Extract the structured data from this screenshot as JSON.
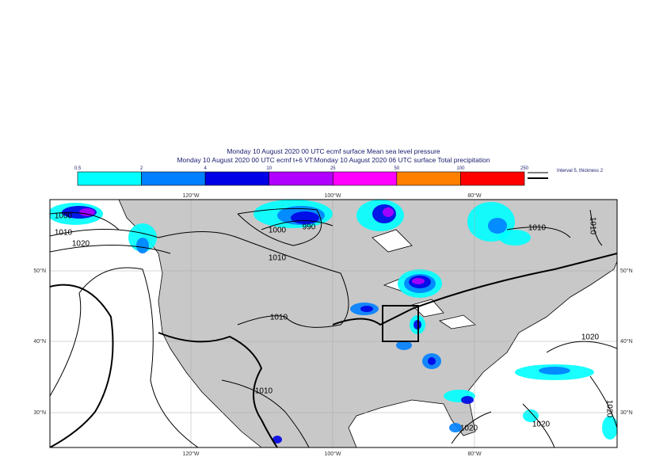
{
  "header": {
    "title_line1": "Monday 10 August 2020 00 UTC ecmf surface  Mean sea level pressure",
    "title_line2": "Monday 10 August 2020 00 UTC ecmf t+6 VT:Monday 10 August 2020 06 UTC surface  Total precipitation"
  },
  "colorbar": {
    "labels": [
      0.5,
      2,
      4,
      10,
      25,
      50,
      100,
      250
    ]
  },
  "contour_legend": "Interval 5, thickness 2",
  "axes": {
    "longitudes": [
      "120°W",
      "100°W",
      "80°W"
    ],
    "latitudes": [
      "50°N",
      "40°N",
      "30°N"
    ]
  },
  "contour_labels": [
    "1000",
    "1010",
    "1020",
    "1000",
    "990",
    "1010",
    "1010",
    "1010",
    "1010",
    "1010",
    "1020",
    "1020",
    "1020",
    "1020"
  ]
}
